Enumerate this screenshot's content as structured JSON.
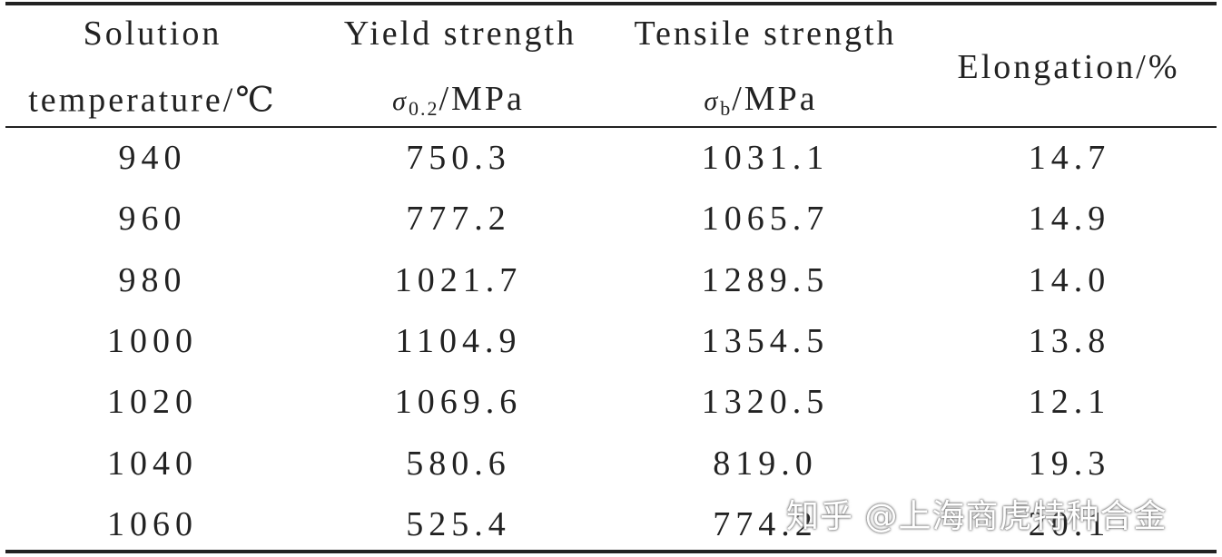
{
  "table": {
    "header": [
      {
        "lines": [
          "Solution",
          "temperature/℃"
        ]
      },
      {
        "lines": [
          "Yield strength"
        ],
        "symbol": "σ",
        "sub": "0.2",
        "unit": "/MPa"
      },
      {
        "lines": [
          "Tensile strength"
        ],
        "symbol": "σ",
        "sub": "b",
        "unit": "/MPa"
      },
      {
        "lines": [
          "Elongation/%"
        ]
      }
    ],
    "rows": [
      [
        "940",
        "750.3",
        "1031.1",
        "14.7"
      ],
      [
        "960",
        "777.2",
        "1065.7",
        "14.9"
      ],
      [
        "980",
        "1021.7",
        "1289.5",
        "14.0"
      ],
      [
        "1000",
        "1104.9",
        "1354.5",
        "13.8"
      ],
      [
        "1020",
        "1069.6",
        "1320.5",
        "12.1"
      ],
      [
        "1040",
        "580.6",
        "819.0",
        "19.3"
      ],
      [
        "1060",
        "525.4",
        "774.2",
        "20.1"
      ]
    ]
  },
  "watermark": "知乎 @上海商虎特种合金"
}
